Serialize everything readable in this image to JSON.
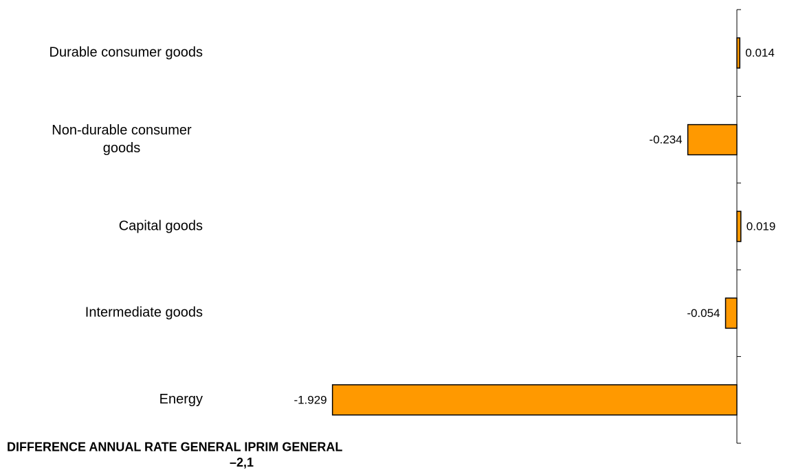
{
  "chart_data": {
    "type": "bar",
    "orientation": "horizontal",
    "categories": [
      "Durable consumer goods",
      "Non-durable consumer goods",
      "Capital goods",
      "Intermediate goods",
      "Energy"
    ],
    "values": [
      0.014,
      -0.234,
      0.019,
      -0.054,
      -1.929
    ],
    "value_labels": [
      "0.014",
      "-0.234",
      "0.019",
      "-0.054",
      "-1.929"
    ],
    "xlim": [
      -1.929,
      0.019
    ],
    "bar_color": "#FF9900",
    "grid": false,
    "legend": "none"
  },
  "footer": {
    "title": "DIFFERENCE ANNUAL RATE GENERAL  IPRIM GENERAL",
    "value": "–2,1"
  }
}
